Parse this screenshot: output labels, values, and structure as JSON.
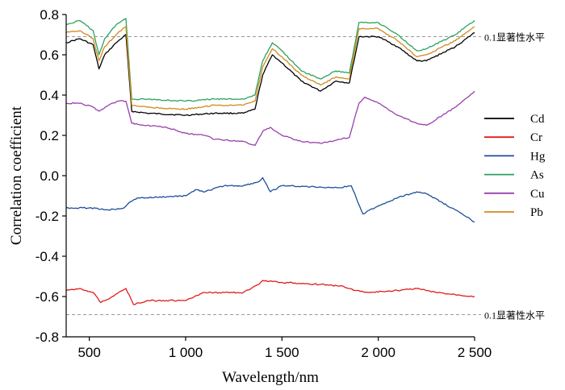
{
  "chart_data": {
    "type": "line",
    "xlabel": "Wavelength/nm",
    "ylabel": "Correlation coefficient",
    "xlim": [
      380,
      2500
    ],
    "ylim": [
      -0.8,
      0.8
    ],
    "x_ticks": [
      500,
      1000,
      1500,
      2000,
      2500
    ],
    "x_tick_labels": [
      "500",
      "1 000",
      "1 500",
      "2 000",
      "2 500"
    ],
    "y_ticks": [
      -0.8,
      -0.6,
      -0.4,
      -0.2,
      0.0,
      0.2,
      0.4,
      0.6,
      0.8
    ],
    "y_tick_labels": [
      "-0.8",
      "-0.6",
      "-0.4",
      "-0.2",
      "0.0",
      "0.2",
      "0.4",
      "0.6",
      "0.8"
    ],
    "reference_lines": [
      {
        "y": 0.69,
        "label": "0.1显著性水平"
      },
      {
        "y": -0.69,
        "label": "0.1显著性水平"
      }
    ],
    "legend": "right",
    "grid": false,
    "series": [
      {
        "name": "Cd",
        "color": "#000000",
        "x": [
          380,
          450,
          520,
          550,
          580,
          640,
          690,
          720,
          800,
          1000,
          1150,
          1300,
          1360,
          1400,
          1450,
          1500,
          1600,
          1700,
          1780,
          1850,
          1900,
          2000,
          2100,
          2200,
          2250,
          2400,
          2500
        ],
        "y": [
          0.66,
          0.68,
          0.65,
          0.53,
          0.6,
          0.66,
          0.7,
          0.32,
          0.31,
          0.3,
          0.31,
          0.31,
          0.33,
          0.5,
          0.6,
          0.56,
          0.47,
          0.42,
          0.47,
          0.46,
          0.69,
          0.69,
          0.64,
          0.57,
          0.57,
          0.64,
          0.71
        ]
      },
      {
        "name": "Cr",
        "color": "#e31a1c",
        "x": [
          380,
          450,
          520,
          560,
          620,
          690,
          730,
          800,
          1000,
          1100,
          1150,
          1300,
          1380,
          1400,
          1500,
          1700,
          1820,
          1880,
          1950,
          2100,
          2200,
          2300,
          2500
        ],
        "y": [
          -0.57,
          -0.56,
          -0.58,
          -0.63,
          -0.6,
          -0.56,
          -0.64,
          -0.62,
          -0.62,
          -0.58,
          -0.58,
          -0.58,
          -0.54,
          -0.52,
          -0.53,
          -0.54,
          -0.55,
          -0.57,
          -0.58,
          -0.57,
          -0.56,
          -0.58,
          -0.6
        ]
      },
      {
        "name": "Hg",
        "color": "#1f4e9a",
        "x": [
          380,
          500,
          600,
          680,
          700,
          750,
          800,
          1000,
          1050,
          1100,
          1200,
          1300,
          1380,
          1400,
          1440,
          1500,
          1800,
          1860,
          1920,
          2000,
          2100,
          2200,
          2250,
          2400,
          2500
        ],
        "y": [
          -0.16,
          -0.16,
          -0.17,
          -0.16,
          -0.14,
          -0.11,
          -0.11,
          -0.1,
          -0.07,
          -0.08,
          -0.05,
          -0.05,
          -0.03,
          -0.01,
          -0.08,
          -0.05,
          -0.06,
          -0.05,
          -0.19,
          -0.15,
          -0.11,
          -0.08,
          -0.09,
          -0.17,
          -0.23
        ]
      },
      {
        "name": "As",
        "color": "#2ca25f",
        "x": [
          380,
          450,
          520,
          550,
          580,
          640,
          690,
          720,
          800,
          1000,
          1150,
          1300,
          1360,
          1400,
          1450,
          1500,
          1600,
          1700,
          1780,
          1850,
          1900,
          2000,
          2100,
          2200,
          2250,
          2400,
          2500
        ],
        "y": [
          0.75,
          0.77,
          0.72,
          0.6,
          0.68,
          0.75,
          0.78,
          0.38,
          0.38,
          0.37,
          0.38,
          0.38,
          0.4,
          0.57,
          0.66,
          0.62,
          0.52,
          0.48,
          0.52,
          0.51,
          0.76,
          0.76,
          0.7,
          0.62,
          0.63,
          0.7,
          0.77
        ]
      },
      {
        "name": "Cu",
        "color": "#9b3fad",
        "x": [
          380,
          450,
          520,
          550,
          600,
          650,
          690,
          720,
          800,
          900,
          1000,
          1100,
          1150,
          1300,
          1360,
          1400,
          1440,
          1500,
          1600,
          1700,
          1800,
          1850,
          1900,
          1930,
          2000,
          2100,
          2200,
          2250,
          2400,
          2500
        ],
        "y": [
          0.36,
          0.36,
          0.34,
          0.32,
          0.35,
          0.37,
          0.37,
          0.26,
          0.25,
          0.24,
          0.21,
          0.2,
          0.18,
          0.17,
          0.15,
          0.22,
          0.24,
          0.2,
          0.17,
          0.16,
          0.18,
          0.19,
          0.36,
          0.39,
          0.36,
          0.3,
          0.26,
          0.25,
          0.34,
          0.42
        ]
      },
      {
        "name": "Pb",
        "color": "#d08a1b",
        "x": [
          380,
          450,
          520,
          550,
          580,
          640,
          690,
          720,
          800,
          1000,
          1150,
          1300,
          1360,
          1400,
          1450,
          1500,
          1600,
          1700,
          1780,
          1850,
          1900,
          2000,
          2100,
          2200,
          2250,
          2400,
          2500
        ],
        "y": [
          0.71,
          0.72,
          0.68,
          0.57,
          0.64,
          0.7,
          0.74,
          0.35,
          0.34,
          0.33,
          0.35,
          0.35,
          0.37,
          0.54,
          0.63,
          0.59,
          0.5,
          0.45,
          0.49,
          0.48,
          0.73,
          0.73,
          0.67,
          0.59,
          0.6,
          0.67,
          0.74
        ]
      }
    ]
  }
}
